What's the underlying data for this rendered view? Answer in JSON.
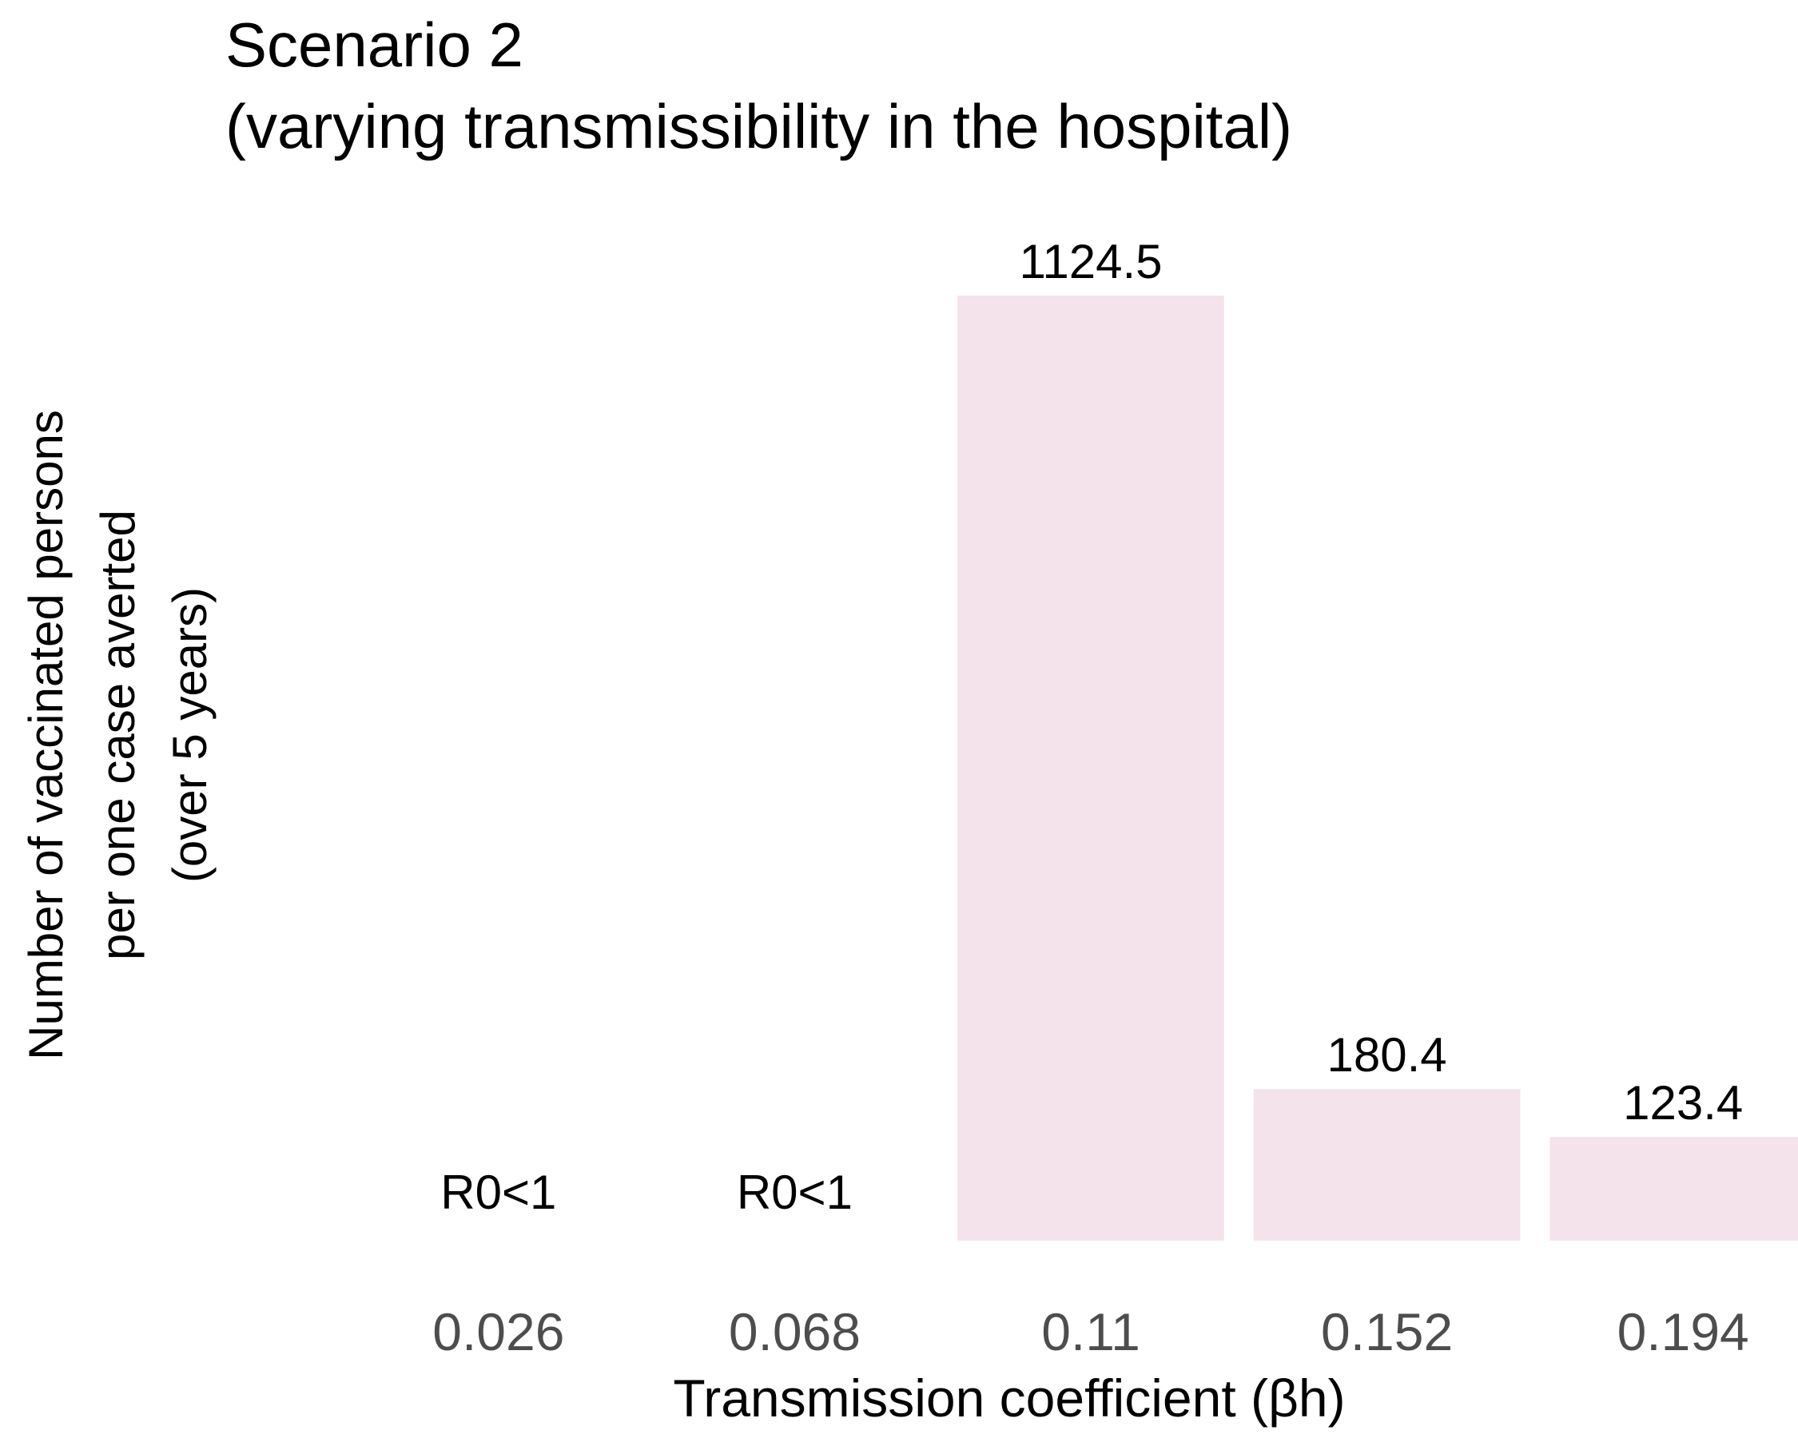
{
  "chart_data": {
    "type": "bar",
    "title": "Scenario 2",
    "subtitle": "(varying transmissibility in the hospital)",
    "xlabel": "Transmission coefficient (βh)",
    "ylabel_lines": [
      "Number of vaccinated persons",
      "per one case averted",
      "(over 5 years)"
    ],
    "categories": [
      "0.026",
      "0.068",
      "0.11",
      "0.152",
      "0.194"
    ],
    "values": [
      null,
      null,
      1124.5,
      180.4,
      123.4
    ],
    "data_labels": [
      "R0<1",
      "R0<1",
      "1124.5",
      "180.4",
      "123.4"
    ],
    "ylim": [
      0,
      1124.5
    ],
    "grid": false,
    "legend": "none",
    "colors": {
      "bar": "#f4e3eb",
      "text": "#000000",
      "tick_text": "#4d4d4d"
    }
  }
}
